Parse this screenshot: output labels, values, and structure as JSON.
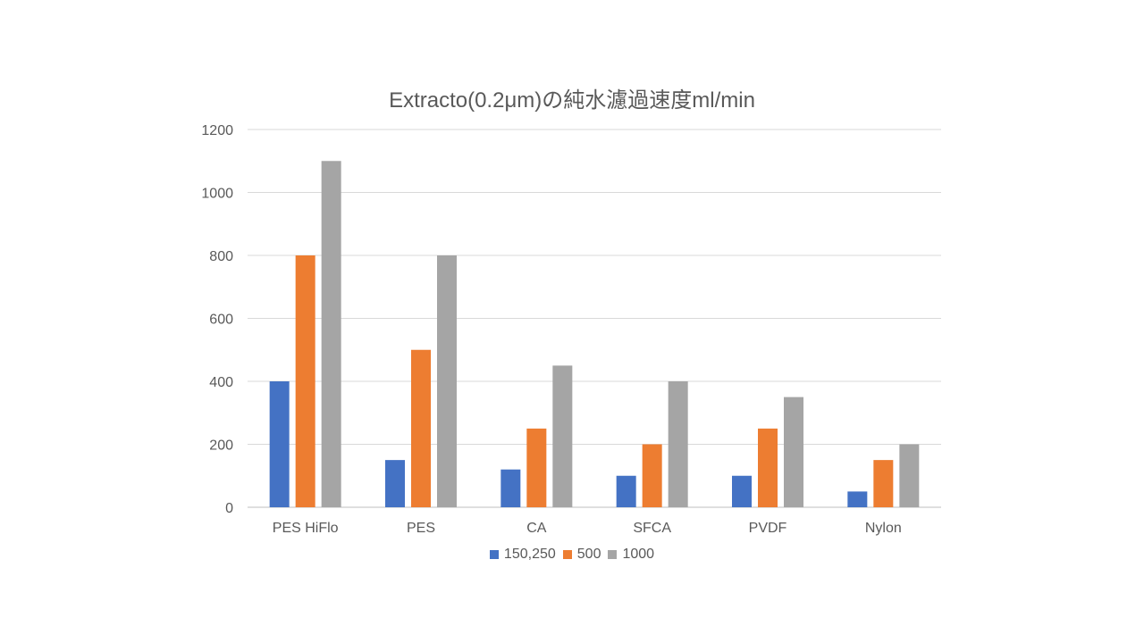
{
  "chart_data": {
    "type": "bar",
    "title": "Extracto(0.2μm)の純水濾過速度ml/min",
    "xlabel": "",
    "ylabel": "",
    "ylim": [
      0,
      1200
    ],
    "yticks": [
      0,
      200,
      400,
      600,
      800,
      1000,
      1200
    ],
    "categories": [
      "PES HiFlo",
      "PES",
      "CA",
      "SFCA",
      "PVDF",
      "Nylon"
    ],
    "series": [
      {
        "name": "150,250",
        "color": "#4472C4",
        "values": [
          400,
          150,
          120,
          100,
          100,
          50
        ]
      },
      {
        "name": "500",
        "color": "#ED7D31",
        "values": [
          800,
          500,
          250,
          200,
          250,
          150
        ]
      },
      {
        "name": "1000",
        "color": "#A5A5A5",
        "values": [
          1100,
          800,
          450,
          400,
          350,
          200
        ]
      }
    ],
    "grid": true,
    "legend_position": "bottom"
  }
}
